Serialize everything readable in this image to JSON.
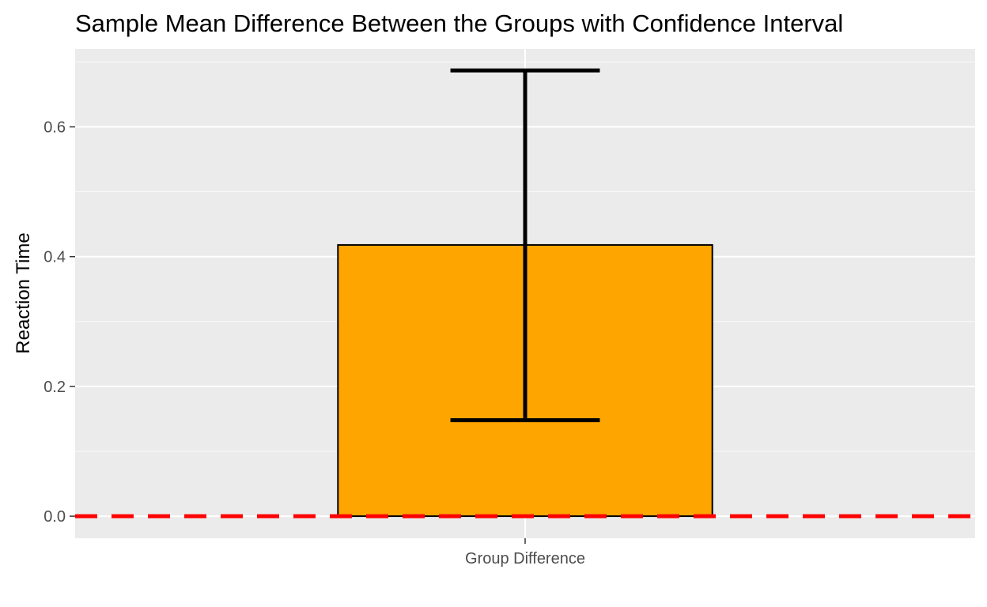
{
  "chart_data": {
    "type": "bar",
    "title": "Sample Mean Difference Between the Groups with Confidence Interval",
    "xlabel": "",
    "ylabel": "Reaction Time",
    "categories": [
      "Group Difference"
    ],
    "values": [
      0.418
    ],
    "error_bars": [
      {
        "lower": 0.148,
        "upper": 0.687
      }
    ],
    "reference_line": {
      "y": 0.0,
      "style": "dashed",
      "color": "#ff0000"
    },
    "ylim": [
      -0.034,
      0.72
    ],
    "y_ticks": [
      0.0,
      0.2,
      0.4,
      0.6
    ],
    "y_tick_labels": [
      "0.0",
      "0.2",
      "0.4",
      "0.6"
    ],
    "grid": true,
    "colors": {
      "bar_fill": "#ffa500",
      "bar_stroke": "#000000",
      "panel_background": "#ebebeb",
      "grid_major": "#ffffff",
      "error_bar": "#000000",
      "reference_line": "#ff0000"
    }
  }
}
